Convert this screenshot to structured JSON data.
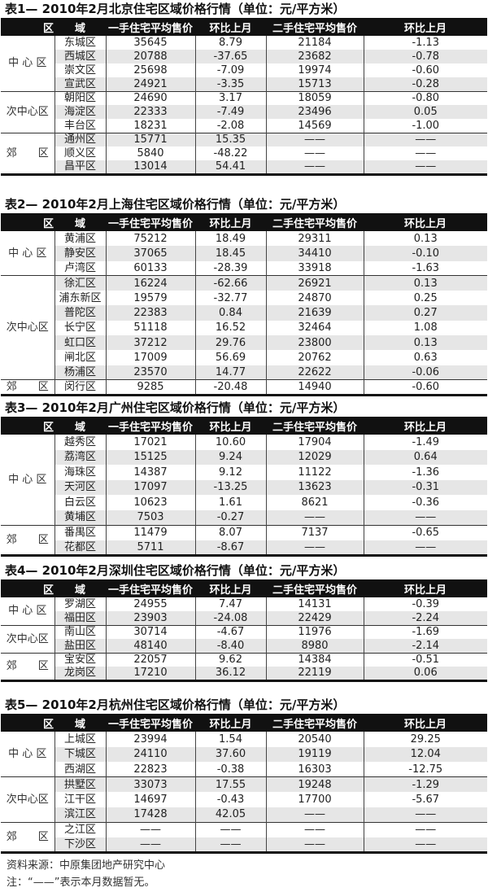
{
  "header": [
    "区　　域",
    "一手住宅平均售价",
    "环比上月",
    "二手住宅平均售价",
    "环比上月"
  ],
  "tables": [
    {
      "title": "表1— 2010年2月北京住宅区域价格行情（单位：元/平方米）",
      "groups": [
        {
          "name": "中 心 区",
          "rows": [
            [
              "东城区",
              "35645",
              "8.79",
              "21184",
              "-1.13"
            ],
            [
              "西城区",
              "20788",
              "-37.65",
              "23682",
              "-0.78"
            ],
            [
              "崇文区",
              "25698",
              "-7.09",
              "19974",
              "-0.60"
            ],
            [
              "宣武区",
              "24921",
              "-3.35",
              "15713",
              "-0.28"
            ]
          ]
        },
        {
          "name": "次中心区",
          "rows": [
            [
              "朝阳区",
              "24690",
              "3.17",
              "18059",
              "-0.80"
            ],
            [
              "海淀区",
              "22333",
              "-7.49",
              "23496",
              "0.05"
            ],
            [
              "丰台区",
              "18231",
              "-2.08",
              "14569",
              "-1.00"
            ]
          ]
        },
        {
          "name": "郊　　区",
          "rows": [
            [
              "通州区",
              "15771",
              "15.35",
              "——",
              "——"
            ],
            [
              "顺义区",
              "5840",
              "-48.22",
              "——",
              "——"
            ],
            [
              "昌平区",
              "13014",
              "54.41",
              "——",
              "——"
            ]
          ]
        }
      ]
    },
    {
      "title": "表2— 2010年2月上海住宅区域价格行情（单位：元/平方米）",
      "groups": [
        {
          "name": "中 心 区",
          "rows": [
            [
              "黄浦区",
              "75212",
              "18.49",
              "29311",
              "0.13"
            ],
            [
              "静安区",
              "37065",
              "18.45",
              "34410",
              "-0.10"
            ],
            [
              "卢湾区",
              "60133",
              "-28.39",
              "33918",
              "-1.63"
            ]
          ]
        },
        {
          "name": "次中心区",
          "rows": [
            [
              "徐汇区",
              "16224",
              "-62.66",
              "26921",
              "0.13"
            ],
            [
              "浦东新区",
              "19579",
              "-32.77",
              "24870",
              "0.25"
            ],
            [
              "普陀区",
              "22383",
              "0.84",
              "21639",
              "0.27"
            ],
            [
              "长宁区",
              "51118",
              "16.52",
              "32464",
              "1.08"
            ],
            [
              "虹口区",
              "37212",
              "29.76",
              "23800",
              "0.13"
            ],
            [
              "闸北区",
              "17009",
              "56.69",
              "20762",
              "0.63"
            ],
            [
              "杨浦区",
              "23570",
              "14.77",
              "22622",
              "-0.06"
            ]
          ]
        },
        {
          "name": "郊　　区",
          "rows": [
            [
              "闵行区",
              "9285",
              "-20.48",
              "14940",
              "-0.60"
            ]
          ]
        }
      ]
    },
    {
      "title": "表3— 2010年2月广州住宅区域价格行情（单位：元/平方米）",
      "groups": [
        {
          "name": "中 心 区",
          "rows": [
            [
              "越秀区",
              "17021",
              "10.60",
              "17904",
              "-1.49"
            ],
            [
              "荔湾区",
              "15125",
              "9.24",
              "12029",
              "0.64"
            ],
            [
              "海珠区",
              "14387",
              "9.12",
              "11122",
              "-1.36"
            ],
            [
              "天河区",
              "17097",
              "-13.25",
              "13623",
              "-0.31"
            ],
            [
              "白云区",
              "10623",
              "1.61",
              "8621",
              "-0.36"
            ],
            [
              "黄埔区",
              "7503",
              "-0.27",
              "——",
              "——"
            ]
          ]
        },
        {
          "name": "郊　　区",
          "rows": [
            [
              "番禺区",
              "11479",
              "8.07",
              "7137",
              "-0.65"
            ],
            [
              "花都区",
              "5711",
              "-8.67",
              "——",
              "——"
            ]
          ]
        }
      ]
    },
    {
      "title": "表4— 2010年2月深圳住宅区域价格行情（单位：元/平方米）",
      "groups": [
        {
          "name": "中 心 区",
          "rows": [
            [
              "罗湖区",
              "24955",
              "7.47",
              "14131",
              "-0.39"
            ],
            [
              "福田区",
              "23903",
              "-24.08",
              "22429",
              "-2.24"
            ]
          ]
        },
        {
          "name": "次中心区",
          "rows": [
            [
              "南山区",
              "30714",
              "-4.67",
              "11976",
              "-1.69"
            ],
            [
              "盐田区",
              "48140",
              "-8.40",
              "8980",
              "-2.14"
            ]
          ]
        },
        {
          "name": "郊　　区",
          "rows": [
            [
              "宝安区",
              "22057",
              "9.62",
              "14384",
              "-0.51"
            ],
            [
              "龙岗区",
              "17210",
              "36.12",
              "22119",
              "0.06"
            ]
          ]
        }
      ]
    },
    {
      "title": "表5— 2010年2月杭州住宅区域价格行情（单位：元/平方米）",
      "groups": [
        {
          "name": "中 心 区",
          "rows": [
            [
              "上城区",
              "23994",
              "1.54",
              "20540",
              "29.25"
            ],
            [
              "下城区",
              "24110",
              "37.60",
              "19119",
              "12.04"
            ],
            [
              "西湖区",
              "22823",
              "-0.38",
              "16303",
              "-12.75"
            ]
          ]
        },
        {
          "name": "次中心区",
          "rows": [
            [
              "拱墅区",
              "33073",
              "17.55",
              "19248",
              "-1.29"
            ],
            [
              "江干区",
              "14697",
              "-0.43",
              "17700",
              "-5.67"
            ],
            [
              "滨江区",
              "17428",
              "42.05",
              "——",
              "——"
            ]
          ]
        },
        {
          "name": "郊　　区",
          "rows": [
            [
              "之江区",
              "——",
              "——",
              "——",
              "——"
            ],
            [
              "下沙区",
              "——",
              "——",
              "——",
              "——"
            ]
          ]
        }
      ]
    }
  ],
  "footer": {
    "source": "资料来源：中原集团地产研究中心",
    "note": "注：“——”表示本月数据暂无。"
  }
}
